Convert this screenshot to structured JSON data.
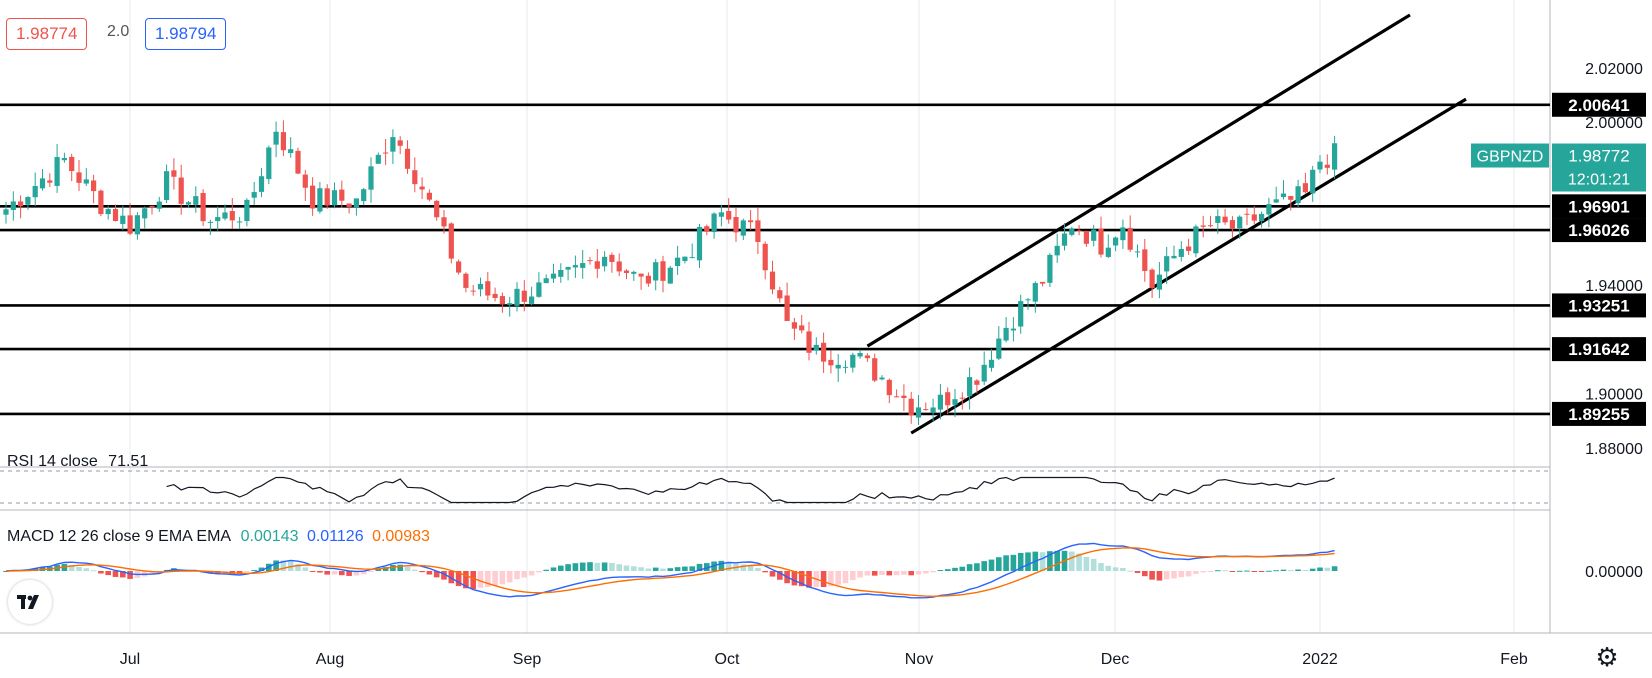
{
  "header": {
    "bid": "1.98774",
    "spread": "2.0",
    "ask": "1.98794",
    "bid_color": "#ef5350",
    "ask_color": "#2962ff"
  },
  "price_scale": {
    "ticks": [
      "2.02000",
      "2.00000",
      "1.94000",
      "1.90000",
      "1.88000"
    ],
    "ticks_values": [
      2.02,
      2.0,
      1.94,
      1.9,
      1.88
    ]
  },
  "symbol_label": {
    "name": "GBPNZD",
    "price": "1.98772",
    "countdown": "12:01:21",
    "color": "#26a69a"
  },
  "levels": [
    {
      "label": "2.00641",
      "value": 2.00641
    },
    {
      "label": "1.96901",
      "value": 1.96901
    },
    {
      "label": "1.96026",
      "value": 1.96026
    },
    {
      "label": "1.93251",
      "value": 1.93251
    },
    {
      "label": "1.91642",
      "value": 1.91642
    },
    {
      "label": "1.89255",
      "value": 1.89255
    }
  ],
  "time_axis": [
    "Jul",
    "Aug",
    "Sep",
    "Oct",
    "Nov",
    "Dec",
    "2022",
    "Feb"
  ],
  "rsi": {
    "label": "RSI 14 close",
    "value": "71.51",
    "color": "#131722"
  },
  "macd": {
    "label": "MACD 12 26 close 9 EMA EMA",
    "hist": "0.00143",
    "macd": "0.01126",
    "signal": "0.00983",
    "hist_color": "#26a69a",
    "macd_color": "#2962ff",
    "signal_color": "#ff6d00",
    "zero_label": "0.00000"
  },
  "colors": {
    "up": "#26a69a",
    "down": "#ef5350",
    "levels": "#000000",
    "channel": "#000000"
  },
  "chart_data": {
    "type": "candlestick",
    "symbol": "GBPNZD",
    "interval": "daily",
    "ylim": [
      1.873,
      2.045
    ],
    "anchors": [
      [
        0,
        1.968
      ],
      [
        8,
        1.986
      ],
      [
        13,
        1.97
      ],
      [
        17,
        1.962
      ],
      [
        22,
        1.978
      ],
      [
        28,
        1.964
      ],
      [
        33,
        1.967
      ],
      [
        37,
        1.998
      ],
      [
        42,
        1.972
      ],
      [
        48,
        1.971
      ],
      [
        53,
        1.997
      ],
      [
        57,
        1.976
      ],
      [
        63,
        1.939
      ],
      [
        68,
        1.935
      ],
      [
        75,
        1.94
      ],
      [
        82,
        1.952
      ],
      [
        87,
        1.941
      ],
      [
        93,
        1.951
      ],
      [
        98,
        1.966
      ],
      [
        103,
        1.958
      ],
      [
        107,
        1.925
      ],
      [
        111,
        1.915
      ],
      [
        116,
        1.914
      ],
      [
        120,
        1.906
      ],
      [
        124,
        1.896
      ],
      [
        128,
        1.897
      ],
      [
        133,
        1.907
      ],
      [
        137,
        1.925
      ],
      [
        142,
        1.942
      ],
      [
        146,
        1.963
      ],
      [
        150,
        1.955
      ],
      [
        153,
        1.963
      ],
      [
        157,
        1.94
      ],
      [
        161,
        1.954
      ],
      [
        165,
        1.962
      ],
      [
        169,
        1.961
      ],
      [
        173,
        1.968
      ],
      [
        178,
        1.973
      ],
      [
        180,
        1.986
      ],
      [
        182,
        1.988
      ]
    ],
    "n_candles": 183,
    "rsi_last": 71.51,
    "macd_last": {
      "histogram": 0.00143,
      "macd": 0.01126,
      "signal": 0.00983
    }
  }
}
